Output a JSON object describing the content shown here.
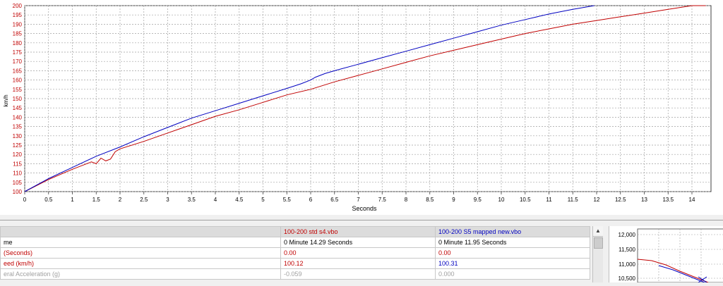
{
  "chart_data": {
    "type": "line",
    "xlabel": "Seconds",
    "ylabel": "km/h",
    "xlim": [
      0,
      14.4
    ],
    "ylim": [
      100,
      200
    ],
    "x_ticks": [
      "0",
      "0.5",
      "1",
      "1.5",
      "2",
      "2.5",
      "3",
      "3.5",
      "4",
      "4.5",
      "5",
      "5.5",
      "6",
      "6.5",
      "7",
      "7.5",
      "8",
      "8.5",
      "9",
      "9.5",
      "10",
      "10.5",
      "11",
      "11.5",
      "12",
      "12.5",
      "13",
      "13.5",
      "14"
    ],
    "y_ticks": [
      "100",
      "105",
      "110",
      "115",
      "120",
      "125",
      "130",
      "135",
      "140",
      "145",
      "150",
      "155",
      "160",
      "165",
      "170",
      "175",
      "180",
      "185",
      "190",
      "195",
      "200"
    ],
    "grid": true,
    "series": [
      {
        "color": "#c00000",
        "x": [
          0,
          0.5,
          1.0,
          1.4,
          1.5,
          1.6,
          1.7,
          1.8,
          1.9,
          2.0,
          2.5,
          3.0,
          3.5,
          4.0,
          4.5,
          5.0,
          5.5,
          6.0,
          6.5,
          7.0,
          7.5,
          8.0,
          8.5,
          9.0,
          9.5,
          10.0,
          10.5,
          11.0,
          11.5,
          12.0,
          12.5,
          13.0,
          13.5,
          14.0,
          14.29
        ],
        "y": [
          100,
          106.5,
          112,
          116,
          115,
          118,
          116.5,
          117.5,
          121.5,
          123,
          127,
          131.5,
          136,
          140.5,
          144,
          148,
          152,
          155,
          159,
          162.5,
          166,
          169.5,
          173,
          176,
          179,
          182,
          185,
          187.5,
          190,
          192,
          194,
          196,
          198,
          200,
          200
        ]
      },
      {
        "color": "#0000c0",
        "x": [
          0,
          0.5,
          1.0,
          1.5,
          2.0,
          2.5,
          3.0,
          3.5,
          4.0,
          4.5,
          5.0,
          5.5,
          5.8,
          6.0,
          6.1,
          6.3,
          6.5,
          7.0,
          7.5,
          8.0,
          8.5,
          9.0,
          9.5,
          10.0,
          10.5,
          11.0,
          11.5,
          11.95
        ],
        "y": [
          100,
          107,
          113,
          119,
          124,
          129.5,
          134.5,
          139.5,
          143.5,
          147.5,
          151.5,
          155.5,
          158,
          160,
          161.5,
          163.5,
          165,
          168.5,
          172,
          175.5,
          179,
          182.5,
          186,
          189.5,
          192.5,
          195.5,
          198,
          200
        ]
      }
    ]
  },
  "table": {
    "header": [
      "",
      "100-200 std s4.vbo",
      "100-200 S5 mapped new.vbo"
    ],
    "rows": [
      [
        "me",
        "0 Minute 14.29 Seconds",
        "0 Minute 11.95 Seconds"
      ],
      [
        " (Seconds)",
        "0.00",
        "0.00"
      ],
      [
        "eed (km/h)",
        "100.12",
        "100.31"
      ],
      [
        "eral Acceleration (g)",
        "-0.059",
        "0.000"
      ]
    ]
  },
  "mini_chart": {
    "y_ticks": [
      "12,000",
      "11,500",
      "11,000",
      "10,500"
    ]
  },
  "colors": {
    "red_series": "#c00000",
    "blue_series": "#0000c0",
    "grid": "#a0a0a0"
  }
}
